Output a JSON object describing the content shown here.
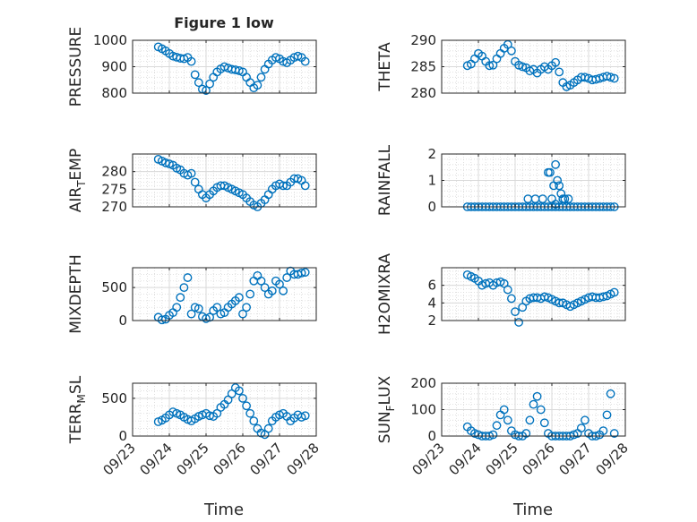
{
  "figure": {
    "title": "Figure 1 low",
    "accent": "#0072BD",
    "grid_color": "#d9d9d9",
    "xlabel": "Time",
    "x_ticks": [
      "09/23",
      "09/24",
      "09/25",
      "09/26",
      "09/27",
      "09/28"
    ]
  },
  "chart_data": [
    {
      "type": "scatter",
      "ylabel": "PRESSURE",
      "title": "Figure 1 low",
      "xlim": [
        "09/23",
        "09/28"
      ],
      "ylim": [
        800,
        1000
      ],
      "yticks": [
        "800",
        "900",
        "1000"
      ],
      "grid": true,
      "series": [
        {
          "x": [
            0.7,
            0.8,
            0.9,
            1.0,
            1.1,
            1.2,
            1.3,
            1.4,
            1.5,
            1.6,
            1.7,
            1.8,
            1.9,
            2.0,
            2.1,
            2.2,
            2.3,
            2.4,
            2.5,
            2.6,
            2.7,
            2.8,
            2.9,
            3.0,
            3.1,
            3.2,
            3.3,
            3.4,
            3.5,
            3.6,
            3.7,
            3.8,
            3.9,
            4.0,
            4.1,
            4.2,
            4.3,
            4.4,
            4.5,
            4.6,
            4.7
          ],
          "y": [
            975,
            968,
            960,
            950,
            940,
            936,
            932,
            930,
            935,
            920,
            870,
            840,
            815,
            810,
            835,
            860,
            880,
            892,
            900,
            895,
            890,
            888,
            885,
            880,
            860,
            840,
            820,
            830,
            860,
            890,
            910,
            925,
            935,
            930,
            920,
            915,
            925,
            935,
            940,
            935,
            920
          ]
        }
      ]
    },
    {
      "type": "scatter",
      "ylabel": "THETA",
      "xlim": [
        "09/23",
        "09/28"
      ],
      "ylim": [
        280,
        290
      ],
      "yticks": [
        "280",
        "285",
        "290"
      ],
      "grid": true,
      "series": [
        {
          "x": [
            0.7,
            0.8,
            0.9,
            1.0,
            1.1,
            1.2,
            1.3,
            1.4,
            1.5,
            1.6,
            1.7,
            1.8,
            1.9,
            2.0,
            2.1,
            2.2,
            2.3,
            2.4,
            2.5,
            2.6,
            2.7,
            2.8,
            2.9,
            3.0,
            3.1,
            3.2,
            3.3,
            3.4,
            3.5,
            3.6,
            3.7,
            3.8,
            3.9,
            4.0,
            4.1,
            4.2,
            4.3,
            4.4,
            4.5,
            4.6,
            4.7
          ],
          "y": [
            285.2,
            285.5,
            286.5,
            287.5,
            287.0,
            286.0,
            285.2,
            285.3,
            286.5,
            287.5,
            288.5,
            289.2,
            288.0,
            286.0,
            285.3,
            285.0,
            284.8,
            284.2,
            284.5,
            283.8,
            284.5,
            285.0,
            284.5,
            285.2,
            285.8,
            284.0,
            282.0,
            281.2,
            281.5,
            282.0,
            282.5,
            283.0,
            283.0,
            282.8,
            282.5,
            282.6,
            282.8,
            283.0,
            283.2,
            283.0,
            282.8
          ]
        }
      ]
    },
    {
      "type": "scatter",
      "ylabel_parts": [
        "AIR",
        "T",
        "EMP"
      ],
      "xlim": [
        "09/23",
        "09/28"
      ],
      "ylim": [
        270,
        285
      ],
      "yticks": [
        "270",
        "275",
        "280"
      ],
      "grid": true,
      "series": [
        {
          "x": [
            0.7,
            0.8,
            0.9,
            1.0,
            1.1,
            1.2,
            1.3,
            1.4,
            1.5,
            1.6,
            1.7,
            1.8,
            1.9,
            2.0,
            2.1,
            2.2,
            2.3,
            2.4,
            2.5,
            2.6,
            2.7,
            2.8,
            2.9,
            3.0,
            3.1,
            3.2,
            3.3,
            3.4,
            3.5,
            3.6,
            3.7,
            3.8,
            3.9,
            4.0,
            4.1,
            4.2,
            4.3,
            4.4,
            4.5,
            4.6,
            4.7
          ],
          "y": [
            283.5,
            283.0,
            282.5,
            282.2,
            281.8,
            281.0,
            280.5,
            279.5,
            279.0,
            279.5,
            277.0,
            275.0,
            273.5,
            272.5,
            273.5,
            274.5,
            275.5,
            276.0,
            276.0,
            275.5,
            275.0,
            274.5,
            274.0,
            273.5,
            272.5,
            271.5,
            270.5,
            270.0,
            271.0,
            272.0,
            273.5,
            275.0,
            276.0,
            276.5,
            276.0,
            276.0,
            277.0,
            278.0,
            278.0,
            277.5,
            276.0
          ]
        }
      ]
    },
    {
      "type": "scatter",
      "ylabel": "RAINFALL",
      "xlim": [
        "09/23",
        "09/28"
      ],
      "ylim": [
        0,
        2
      ],
      "yticks": [
        "0",
        "1",
        "2"
      ],
      "grid": true,
      "series": [
        {
          "x": [
            0.7,
            0.8,
            0.9,
            1.0,
            1.1,
            1.2,
            1.3,
            1.4,
            1.5,
            1.6,
            1.7,
            1.8,
            1.9,
            2.0,
            2.1,
            2.2,
            2.3,
            2.4,
            2.5,
            2.6,
            2.7,
            2.8,
            2.9,
            3.0,
            3.1,
            3.2,
            3.3,
            3.4,
            3.5,
            3.6,
            3.7,
            3.8,
            3.9,
            4.0,
            4.1,
            4.2,
            4.3,
            4.4,
            4.5,
            4.6,
            4.7,
            2.35,
            2.55,
            2.75,
            2.9,
            2.95,
            3.05,
            3.1,
            3.15,
            3.2,
            3.25,
            3.3,
            3.35,
            3.45,
            3.0,
            3.1
          ],
          "y": [
            0,
            0,
            0,
            0,
            0,
            0,
            0,
            0,
            0,
            0,
            0,
            0,
            0,
            0,
            0,
            0,
            0,
            0,
            0,
            0,
            0,
            0,
            0,
            0,
            0,
            0,
            0,
            0,
            0,
            0,
            0,
            0,
            0,
            0,
            0,
            0,
            0,
            0,
            0,
            0,
            0,
            0.3,
            0.3,
            0.3,
            1.3,
            1.3,
            0.8,
            1.6,
            1.0,
            0.8,
            0.5,
            0.3,
            0.3,
            0.3,
            0.3,
            0.1
          ]
        }
      ]
    },
    {
      "type": "scatter",
      "ylabel": "MIXDEPTH",
      "xlim": [
        "09/23",
        "09/28"
      ],
      "ylim": [
        0,
        800
      ],
      "yticks": [
        "0",
        "500"
      ],
      "grid": true,
      "series": [
        {
          "x": [
            0.7,
            0.8,
            0.9,
            1.0,
            1.1,
            1.2,
            1.3,
            1.4,
            1.5,
            1.6,
            1.7,
            1.8,
            1.9,
            2.0,
            2.1,
            2.2,
            2.3,
            2.4,
            2.5,
            2.6,
            2.7,
            2.8,
            2.9,
            3.0,
            3.1,
            3.2,
            3.3,
            3.4,
            3.5,
            3.6,
            3.7,
            3.8,
            3.9,
            4.0,
            4.1,
            4.2,
            4.3,
            4.4,
            4.5,
            4.6,
            4.7
          ],
          "y": [
            50,
            10,
            20,
            80,
            120,
            200,
            350,
            500,
            650,
            100,
            200,
            180,
            60,
            30,
            50,
            150,
            200,
            100,
            120,
            200,
            250,
            300,
            350,
            100,
            200,
            400,
            600,
            680,
            600,
            500,
            400,
            450,
            600,
            550,
            450,
            650,
            750,
            700,
            700,
            720,
            730
          ]
        }
      ]
    },
    {
      "type": "scatter",
      "ylabel": "H2OMIXRA",
      "xlim": [
        "09/23",
        "09/28"
      ],
      "ylim": [
        2,
        8
      ],
      "yticks": [
        "2",
        "4",
        "6"
      ],
      "grid": true,
      "series": [
        {
          "x": [
            0.7,
            0.8,
            0.9,
            1.0,
            1.1,
            1.2,
            1.3,
            1.4,
            1.5,
            1.6,
            1.7,
            1.8,
            1.9,
            2.0,
            2.1,
            2.2,
            2.3,
            2.4,
            2.5,
            2.6,
            2.7,
            2.8,
            2.9,
            3.0,
            3.1,
            3.2,
            3.3,
            3.4,
            3.5,
            3.6,
            3.7,
            3.8,
            3.9,
            4.0,
            4.1,
            4.2,
            4.3,
            4.4,
            4.5,
            4.6,
            4.7
          ],
          "y": [
            7.2,
            7.0,
            6.8,
            6.5,
            6.0,
            6.2,
            6.3,
            6.0,
            6.3,
            6.4,
            6.2,
            5.5,
            4.5,
            3.0,
            1.8,
            3.5,
            4.2,
            4.5,
            4.6,
            4.6,
            4.5,
            4.7,
            4.6,
            4.4,
            4.2,
            4.0,
            4.0,
            3.8,
            3.6,
            3.8,
            4.0,
            4.2,
            4.4,
            4.6,
            4.7,
            4.6,
            4.6,
            4.7,
            4.8,
            5.0,
            5.2
          ]
        }
      ]
    },
    {
      "type": "scatter",
      "ylabel_parts": [
        "TERR",
        "M",
        "SL"
      ],
      "xlim": [
        "09/23",
        "09/28"
      ],
      "ylim": [
        0,
        700
      ],
      "yticks": [
        "0",
        "500"
      ],
      "grid": true,
      "series": [
        {
          "x": [
            0.7,
            0.8,
            0.9,
            1.0,
            1.1,
            1.2,
            1.3,
            1.4,
            1.5,
            1.6,
            1.7,
            1.8,
            1.9,
            2.0,
            2.1,
            2.2,
            2.3,
            2.4,
            2.5,
            2.6,
            2.7,
            2.8,
            2.9,
            3.0,
            3.1,
            3.2,
            3.3,
            3.4,
            3.5,
            3.6,
            3.7,
            3.8,
            3.9,
            4.0,
            4.1,
            4.2,
            4.3,
            4.4,
            4.5,
            4.6,
            4.7
          ],
          "y": [
            190,
            210,
            240,
            280,
            320,
            300,
            280,
            250,
            220,
            200,
            230,
            260,
            280,
            300,
            270,
            260,
            300,
            380,
            420,
            480,
            560,
            640,
            600,
            500,
            400,
            300,
            200,
            100,
            40,
            20,
            100,
            200,
            250,
            280,
            300,
            260,
            200,
            240,
            280,
            250,
            270
          ]
        }
      ]
    },
    {
      "type": "scatter",
      "ylabel_parts": [
        "SUN",
        "F",
        "LUX"
      ],
      "xlim": [
        "09/23",
        "09/28"
      ],
      "ylim": [
        0,
        200
      ],
      "yticks": [
        "0",
        "100",
        "200"
      ],
      "grid": true,
      "series": [
        {
          "x": [
            0.7,
            0.8,
            0.9,
            1.0,
            1.1,
            1.2,
            1.3,
            1.4,
            1.5,
            1.6,
            1.7,
            1.8,
            1.9,
            2.0,
            2.1,
            2.2,
            2.3,
            2.4,
            2.5,
            2.6,
            2.7,
            2.8,
            2.9,
            3.0,
            3.1,
            3.2,
            3.3,
            3.4,
            3.5,
            3.6,
            3.7,
            3.8,
            3.9,
            4.0,
            4.1,
            4.2,
            4.3,
            4.4,
            4.5,
            4.6,
            4.7
          ],
          "y": [
            35,
            20,
            10,
            5,
            0,
            0,
            0,
            5,
            40,
            80,
            100,
            60,
            20,
            5,
            0,
            0,
            10,
            60,
            120,
            150,
            100,
            50,
            10,
            0,
            0,
            0,
            0,
            0,
            0,
            5,
            10,
            30,
            60,
            10,
            0,
            0,
            5,
            20,
            80,
            160,
            10
          ]
        }
      ]
    }
  ]
}
